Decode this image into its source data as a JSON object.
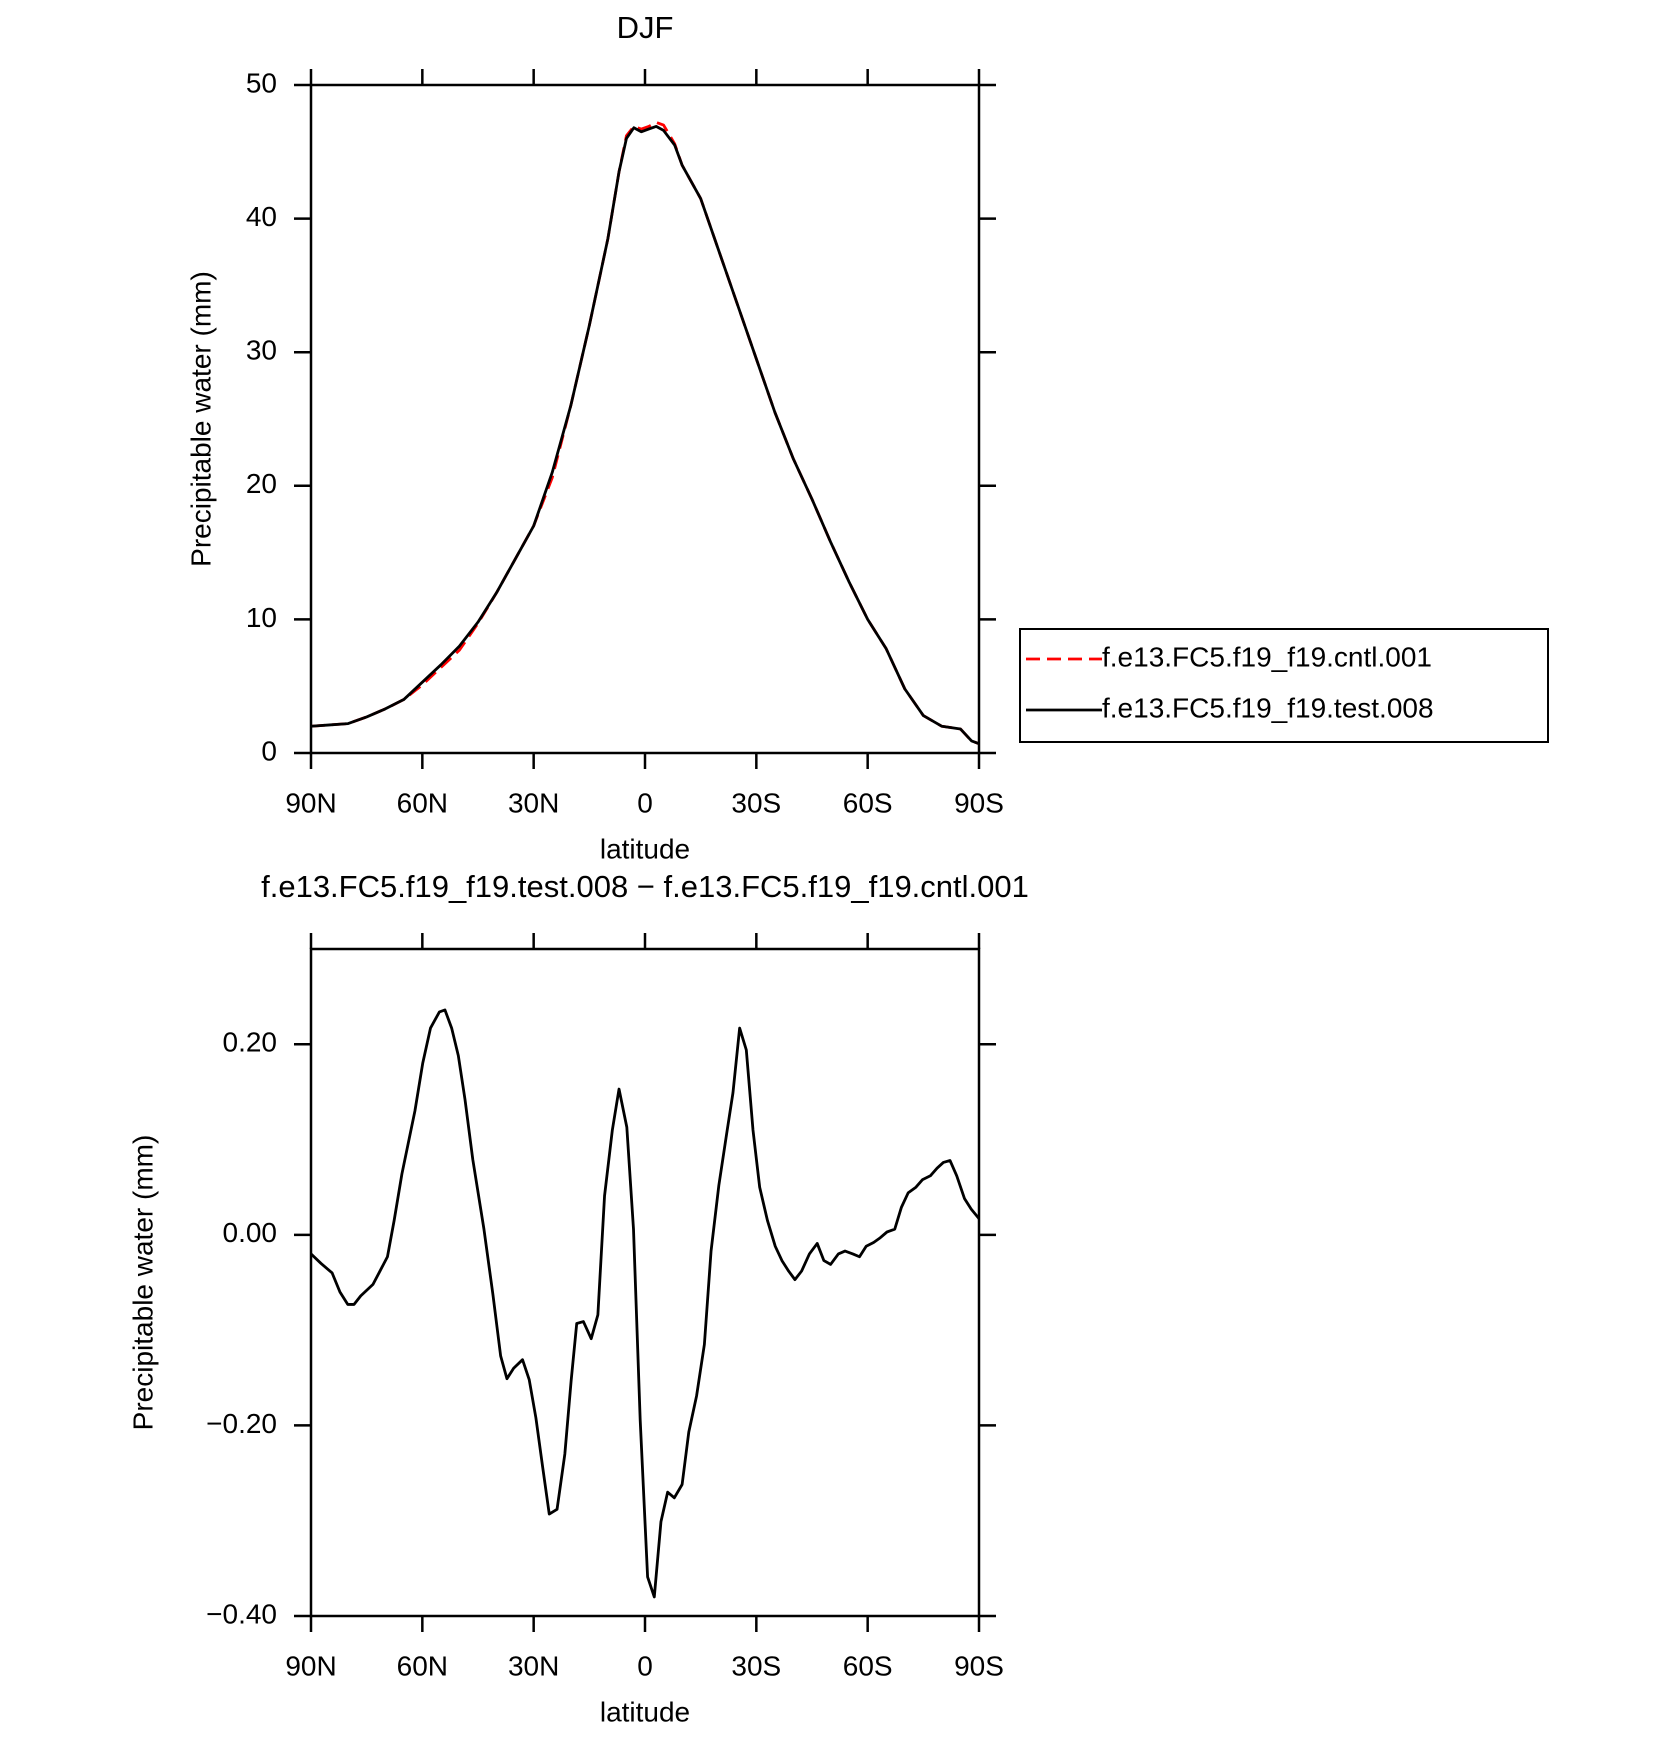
{
  "chart_data": [
    {
      "type": "line",
      "title": "DJF",
      "ylabel": "Precipitable water (mm)",
      "xlabel": "latitude",
      "x": [
        90,
        85,
        80,
        75,
        70,
        65,
        60,
        55,
        50,
        45,
        40,
        35,
        30,
        25,
        20,
        15,
        10,
        7,
        5,
        3,
        1,
        -1,
        -3,
        -5,
        -8,
        -10,
        -15,
        -20,
        -25,
        -30,
        -35,
        -40,
        -45,
        -50,
        -55,
        -60,
        -65,
        -70,
        -75,
        -80,
        -85,
        -88,
        -90
      ],
      "series": [
        {
          "name": "f.e13.FC5.f19_f19.cntl.001",
          "color": "#ff0000",
          "line_style": "dashed",
          "values": [
            2.0,
            2.1,
            2.2,
            2.7,
            3.3,
            4.0,
            5.1,
            6.4,
            7.7,
            9.7,
            12.0,
            14.5,
            17.0,
            20.6,
            26.0,
            32.0,
            38.5,
            43.5,
            46.2,
            46.9,
            46.7,
            46.9,
            47.2,
            47.0,
            45.6,
            44.0,
            41.5,
            37.5,
            33.5,
            29.5,
            25.5,
            22.0,
            19.0,
            15.8,
            12.8,
            10.0,
            7.8,
            4.8,
            2.8,
            2.0,
            1.8,
            0.9,
            0.7
          ]
        },
        {
          "name": "f.e13.FC5.f19_f19.test.008",
          "color": "#000000",
          "line_style": "solid",
          "values": [
            2.0,
            2.1,
            2.2,
            2.7,
            3.3,
            4.0,
            5.3,
            6.6,
            8.0,
            9.8,
            12.0,
            14.5,
            17.0,
            21.0,
            26.0,
            32.0,
            38.5,
            43.5,
            46.0,
            46.8,
            46.5,
            46.7,
            46.9,
            46.6,
            45.5,
            44.0,
            41.5,
            37.5,
            33.5,
            29.5,
            25.5,
            22.0,
            19.0,
            15.8,
            12.8,
            10.0,
            7.8,
            4.8,
            2.8,
            2.0,
            1.8,
            0.9,
            0.7
          ]
        }
      ],
      "xlim": [
        90,
        -90
      ],
      "xticks": [
        {
          "value": 90,
          "label": "90N"
        },
        {
          "value": 60,
          "label": "60N"
        },
        {
          "value": 30,
          "label": "30N"
        },
        0,
        {
          "value": -30,
          "label": "30S"
        },
        {
          "value": -60,
          "label": "60S"
        },
        {
          "value": -90,
          "label": "90S"
        }
      ],
      "ylim": [
        0,
        50
      ],
      "yticks": [
        0,
        10,
        20,
        30,
        40,
        50
      ],
      "legend": "right",
      "grid": false
    },
    {
      "type": "line",
      "title": "f.e13.FC5.f19_f19.test.008 − f.e13.FC5.f19_f19.cntl.001",
      "ylabel": "Precipitable water (mm)",
      "xlabel": "latitude",
      "x": [
        90,
        87.3,
        84.3,
        82.2,
        80.1,
        78.4,
        76.6,
        73.3,
        69.4,
        67.6,
        65.5,
        62.0,
        59.9,
        57.8,
        55.4,
        53.9,
        52.1,
        50.3,
        48.5,
        46.4,
        43.4,
        41.0,
        38.9,
        37.2,
        35.4,
        33.0,
        31.2,
        29.4,
        27.6,
        25.8,
        23.7,
        21.6,
        19.9,
        18.4,
        16.6,
        14.5,
        12.7,
        10.9,
        8.8,
        7.0,
        4.9,
        3.1,
        1.3,
        -0.7,
        -2.5,
        -4.3,
        -6.1,
        -7.9,
        -10.0,
        -11.8,
        -13.9,
        -16.0,
        -17.8,
        -19.9,
        -22.0,
        -23.7,
        -25.5,
        -27.3,
        -29.1,
        -30.9,
        -33.0,
        -35.1,
        -36.9,
        -38.7,
        -40.4,
        -42.2,
        -44.3,
        -46.4,
        -48.2,
        -50.0,
        -52.1,
        -53.9,
        -56.0,
        -57.8,
        -59.6,
        -61.6,
        -63.4,
        -65.2,
        -67.3,
        -69.1,
        -70.9,
        -73.0,
        -74.8,
        -76.9,
        -78.7,
        -80.4,
        -82.2,
        -84.0,
        -86.1,
        -87.9,
        -90
      ],
      "series": [
        {
          "name": null,
          "color": "#000000",
          "line_style": "solid",
          "values": [
            -0.02,
            -0.03,
            -0.04,
            -0.06,
            -0.073,
            -0.073,
            -0.064,
            -0.052,
            -0.023,
            0.015,
            0.064,
            0.13,
            0.18,
            0.217,
            0.234,
            0.236,
            0.217,
            0.188,
            0.142,
            0.079,
            0.006,
            -0.062,
            -0.127,
            -0.151,
            -0.14,
            -0.131,
            -0.152,
            -0.192,
            -0.243,
            -0.293,
            -0.288,
            -0.23,
            -0.153,
            -0.093,
            -0.091,
            -0.109,
            -0.084,
            0.041,
            0.11,
            0.153,
            0.113,
            0.006,
            -0.194,
            -0.359,
            -0.38,
            -0.301,
            -0.27,
            -0.276,
            -0.262,
            -0.207,
            -0.169,
            -0.115,
            -0.017,
            0.052,
            0.106,
            0.149,
            0.217,
            0.194,
            0.11,
            0.05,
            0.015,
            -0.012,
            -0.027,
            -0.038,
            -0.047,
            -0.038,
            -0.02,
            -0.009,
            -0.027,
            -0.031,
            -0.02,
            -0.017,
            -0.02,
            -0.023,
            -0.012,
            -0.008,
            -0.003,
            0.003,
            0.006,
            0.029,
            0.044,
            0.05,
            0.058,
            0.062,
            0.07,
            0.076,
            0.078,
            0.062,
            0.038,
            0.027,
            0.017
          ]
        }
      ],
      "xlim": [
        90,
        -90
      ],
      "xticks": [
        {
          "value": 90,
          "label": "90N"
        },
        {
          "value": 60,
          "label": "60N"
        },
        {
          "value": 30,
          "label": "30N"
        },
        0,
        {
          "value": -30,
          "label": "30S"
        },
        {
          "value": -60,
          "label": "60S"
        },
        {
          "value": -90,
          "label": "90S"
        }
      ],
      "ylim": [
        -0.4,
        0.3
      ],
      "yticks": [
        {
          "value": -0.4,
          "label": "−0.40"
        },
        {
          "value": -0.2,
          "label": "−0.20"
        },
        {
          "value": 0,
          "label": "0.00"
        },
        {
          "value": 0.2,
          "label": "0.20"
        }
      ],
      "grid": false
    }
  ]
}
